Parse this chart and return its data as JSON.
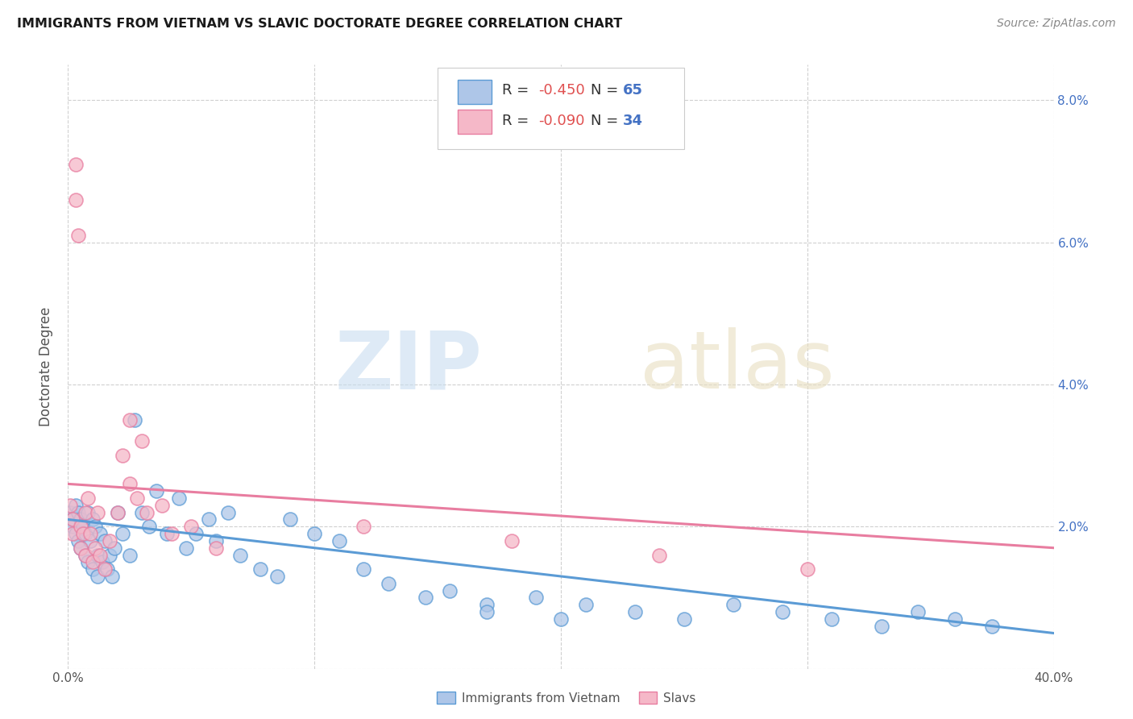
{
  "title": "IMMIGRANTS FROM VIETNAM VS SLAVIC DOCTORATE DEGREE CORRELATION CHART",
  "source": "Source: ZipAtlas.com",
  "ylabel": "Doctorate Degree",
  "xlim": [
    0.0,
    0.4
  ],
  "ylim": [
    0.0,
    0.085
  ],
  "background_color": "#ffffff",
  "grid_color": "#d0d0d0",
  "blue_fill": "#aec6e8",
  "blue_edge": "#5b9bd5",
  "pink_fill": "#f5b8c8",
  "pink_edge": "#e87da0",
  "legend_R_color": "#e05050",
  "legend_N_color": "#4472c4",
  "legend_label_color": "#333333",
  "legend_R_blue": "-0.450",
  "legend_N_blue": "65",
  "legend_R_pink": "-0.090",
  "legend_N_pink": "34",
  "blue_trend_x": [
    0.0,
    0.4
  ],
  "blue_trend_y": [
    0.021,
    0.005
  ],
  "pink_trend_x": [
    0.0,
    0.4
  ],
  "pink_trend_y": [
    0.026,
    0.017
  ],
  "vietnam_x": [
    0.001,
    0.002,
    0.002,
    0.003,
    0.003,
    0.004,
    0.004,
    0.005,
    0.005,
    0.006,
    0.007,
    0.007,
    0.008,
    0.008,
    0.009,
    0.01,
    0.01,
    0.011,
    0.012,
    0.012,
    0.013,
    0.014,
    0.015,
    0.016,
    0.017,
    0.018,
    0.019,
    0.02,
    0.022,
    0.025,
    0.027,
    0.03,
    0.033,
    0.036,
    0.04,
    0.045,
    0.048,
    0.052,
    0.057,
    0.06,
    0.065,
    0.07,
    0.078,
    0.085,
    0.09,
    0.1,
    0.11,
    0.12,
    0.13,
    0.145,
    0.155,
    0.17,
    0.19,
    0.21,
    0.23,
    0.25,
    0.27,
    0.29,
    0.31,
    0.33,
    0.345,
    0.36,
    0.375,
    0.17,
    0.2
  ],
  "vietnam_y": [
    0.022,
    0.021,
    0.02,
    0.023,
    0.019,
    0.022,
    0.018,
    0.021,
    0.017,
    0.02,
    0.019,
    0.016,
    0.022,
    0.015,
    0.018,
    0.021,
    0.014,
    0.02,
    0.016,
    0.013,
    0.019,
    0.015,
    0.018,
    0.014,
    0.016,
    0.013,
    0.017,
    0.022,
    0.019,
    0.016,
    0.035,
    0.022,
    0.02,
    0.025,
    0.019,
    0.024,
    0.017,
    0.019,
    0.021,
    0.018,
    0.022,
    0.016,
    0.014,
    0.013,
    0.021,
    0.019,
    0.018,
    0.014,
    0.012,
    0.01,
    0.011,
    0.009,
    0.01,
    0.009,
    0.008,
    0.007,
    0.009,
    0.008,
    0.007,
    0.006,
    0.008,
    0.007,
    0.006,
    0.008,
    0.007
  ],
  "slavic_x": [
    0.001,
    0.002,
    0.002,
    0.003,
    0.003,
    0.004,
    0.005,
    0.005,
    0.006,
    0.007,
    0.007,
    0.008,
    0.009,
    0.01,
    0.011,
    0.012,
    0.013,
    0.015,
    0.017,
    0.02,
    0.022,
    0.025,
    0.028,
    0.032,
    0.038,
    0.042,
    0.05,
    0.06,
    0.025,
    0.03,
    0.12,
    0.18,
    0.24,
    0.3
  ],
  "slavic_y": [
    0.023,
    0.021,
    0.019,
    0.071,
    0.066,
    0.061,
    0.02,
    0.017,
    0.019,
    0.022,
    0.016,
    0.024,
    0.019,
    0.015,
    0.017,
    0.022,
    0.016,
    0.014,
    0.018,
    0.022,
    0.03,
    0.035,
    0.024,
    0.022,
    0.023,
    0.019,
    0.02,
    0.017,
    0.026,
    0.032,
    0.02,
    0.018,
    0.016,
    0.014
  ]
}
